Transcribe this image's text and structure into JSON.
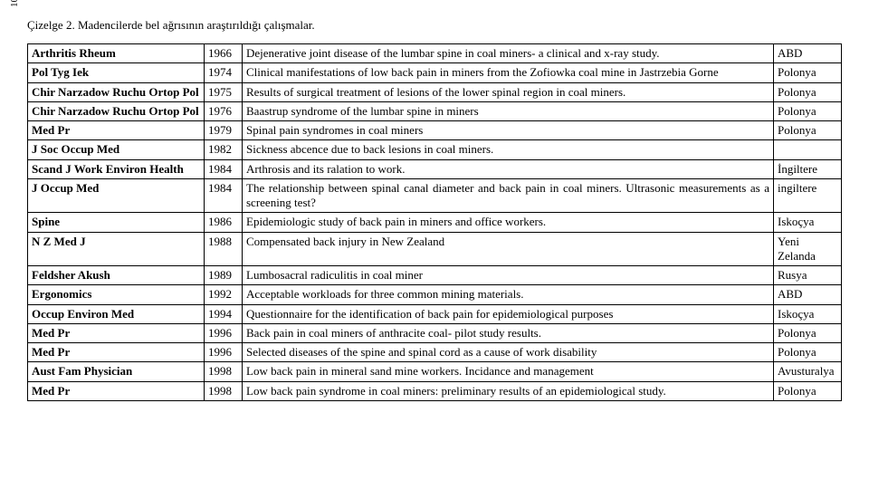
{
  "page_number": "10",
  "caption": "Çizelge 2. Madencilerde bel ağrısının araştırıldığı çalışmalar.",
  "rows": [
    {
      "journal": "Arthritis Rheum",
      "year": "1966",
      "desc": "Dejenerative joint disease of the lumbar spine in coal miners- a clinical and x-ray study.",
      "country": "ABD"
    },
    {
      "journal": "Pol Tyg Iek",
      "year": "1974",
      "desc": "Clinical manifestations of low back pain in miners from the Zofiowka coal mine in Jastrzebia Gorne",
      "country": "Polonya"
    },
    {
      "journal": "Chir Narzadow Ruchu Ortop Pol",
      "year": "1975",
      "desc": "Results of surgical treatment of lesions of the lower spinal region in coal miners.",
      "country": "Polonya"
    },
    {
      "journal": "Chir Narzadow Ruchu Ortop Pol",
      "year": "1976",
      "desc": "Baastrup syndrome of the lumbar spine in miners",
      "country": "Polonya"
    },
    {
      "journal": "Med Pr",
      "year": "1979",
      "desc": "Spinal pain syndromes in coal miners",
      "country": "Polonya"
    },
    {
      "journal": "J Soc Occup Med",
      "year": "1982",
      "desc": "Sickness abcence due to back lesions in coal miners.",
      "country": ""
    },
    {
      "journal": "Scand J Work Environ Health",
      "year": "1984",
      "desc": "Arthrosis and its ralation to work.",
      "country": "İngiltere"
    },
    {
      "journal": "J Occup Med",
      "year": "1984",
      "desc": "The relationship between spinal canal diameter and back pain in coal miners. Ultrasonic measurements as a screening test?",
      "country": "ingiltere"
    },
    {
      "journal": "Spine",
      "year": "1986",
      "desc": "Epidemiologic study of back pain in miners and office workers.",
      "country": "Iskoçya"
    },
    {
      "journal": "N Z Med J",
      "year": "1988",
      "desc": "Compensated back injury in New Zealand",
      "country": "Yeni Zelanda"
    },
    {
      "journal": "Feldsher Akush",
      "year": "1989",
      "desc": "Lumbosacral radiculitis in coal miner",
      "country": "Rusya"
    },
    {
      "journal": "Ergonomics",
      "year": "1992",
      "desc": "Acceptable workloads for three common mining materials.",
      "country": "ABD"
    },
    {
      "journal": "Occup Environ Med",
      "year": "1994",
      "desc": "Questionnaire for the identification of back pain for epidemiological purposes",
      "country": "Iskoçya"
    },
    {
      "journal": "Med Pr",
      "year": "1996",
      "desc": "Back pain in coal miners of anthracite coal- pilot study results.",
      "country": "Polonya"
    },
    {
      "journal": "Med Pr",
      "year": "1996",
      "desc": "Selected diseases of the spine and spinal cord as a cause of work disability",
      "country": "Polonya"
    },
    {
      "journal": "Aust Fam Physician",
      "year": "1998",
      "desc": "Low back pain in mineral sand mine workers. Incidance and management",
      "country": "Avusturalya"
    },
    {
      "journal": "Med Pr",
      "year": "1998",
      "desc": "Low back pain syndrome in coal miners: preliminary results of an epidemiological study.",
      "country": "Polonya"
    }
  ]
}
